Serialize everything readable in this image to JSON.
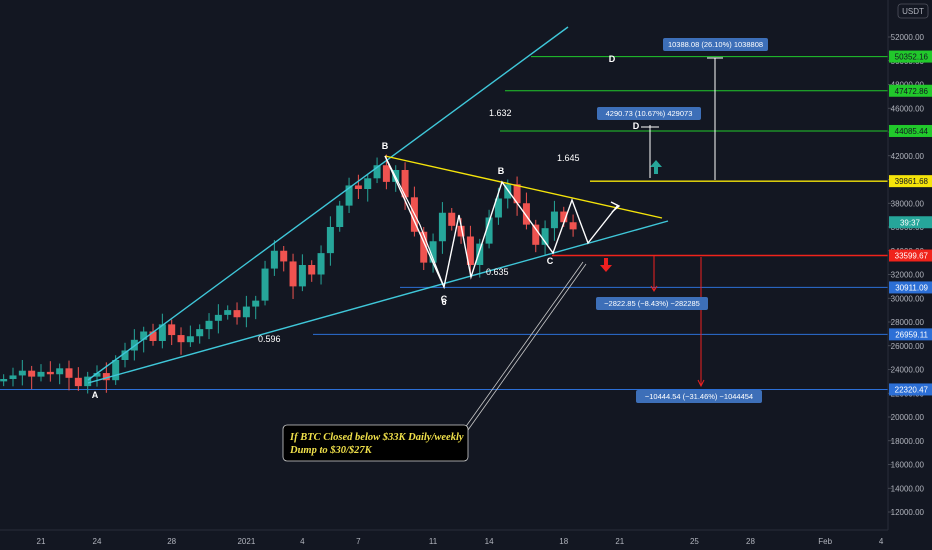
{
  "currency_label": "USDT",
  "chart_data": {
    "type": "candlestick",
    "title": "",
    "y_axis": {
      "ticks": [
        52000,
        50000,
        48000,
        46000,
        44000,
        42000,
        40000,
        38000,
        36000,
        34000,
        32000,
        30000,
        28000,
        26000,
        24000,
        22000,
        20000,
        18000,
        16000,
        14000,
        12000
      ],
      "ylim": [
        11000,
        54000
      ]
    },
    "x_axis": {
      "tick_labels": [
        "21",
        "24",
        "28",
        "2021",
        "4",
        "7",
        "11",
        "14",
        "18",
        "21",
        "25",
        "28",
        "Feb",
        "4"
      ],
      "tick_days": [
        0,
        3,
        7,
        11,
        14,
        17,
        21,
        24,
        28,
        31,
        35,
        38,
        42,
        45
      ]
    },
    "series": [
      {
        "ohlc_day_close": [
          [
            -2,
            23200
          ],
          [
            -1.5,
            23500
          ],
          [
            -1,
            23900
          ],
          [
            -0.5,
            23400
          ],
          [
            0,
            23800
          ],
          [
            0.5,
            23600
          ],
          [
            1,
            24100
          ],
          [
            1.5,
            23300
          ],
          [
            2,
            22600
          ],
          [
            2.5,
            23400
          ],
          [
            3,
            23700
          ],
          [
            3.5,
            23100
          ],
          [
            4,
            24800
          ],
          [
            4.5,
            25600
          ],
          [
            5,
            26500
          ],
          [
            5.5,
            27200
          ],
          [
            6,
            26400
          ],
          [
            6.5,
            27800
          ],
          [
            7,
            26900
          ],
          [
            7.5,
            26300
          ],
          [
            8,
            26800
          ],
          [
            8.5,
            27400
          ],
          [
            9,
            28100
          ],
          [
            9.5,
            28600
          ],
          [
            10,
            29000
          ],
          [
            10.5,
            28400
          ],
          [
            11,
            29300
          ],
          [
            11.5,
            29800
          ],
          [
            12,
            32500
          ],
          [
            12.5,
            34000
          ],
          [
            13,
            33100
          ],
          [
            13.5,
            31000
          ],
          [
            14,
            32800
          ],
          [
            14.5,
            32000
          ],
          [
            15,
            33800
          ],
          [
            15.5,
            36000
          ],
          [
            16,
            37800
          ],
          [
            16.5,
            39500
          ],
          [
            17,
            39200
          ],
          [
            17.5,
            40100
          ],
          [
            18,
            41200
          ],
          [
            18.5,
            39800
          ],
          [
            19,
            40800
          ],
          [
            19.5,
            38500
          ],
          [
            20,
            35600
          ],
          [
            20.5,
            33000
          ],
          [
            21,
            34800
          ],
          [
            21.5,
            37200
          ],
          [
            22,
            36100
          ],
          [
            22.5,
            35200
          ],
          [
            23,
            32800
          ],
          [
            23.5,
            34600
          ],
          [
            24,
            36800
          ],
          [
            24.5,
            38400
          ],
          [
            25,
            39600
          ],
          [
            25.5,
            38000
          ],
          [
            26,
            36200
          ],
          [
            26.5,
            34500
          ],
          [
            27,
            35900
          ],
          [
            27.5,
            37300
          ],
          [
            28,
            36400
          ],
          [
            28.5,
            35800
          ]
        ]
      }
    ],
    "levels": [
      {
        "price_label": "50352.16",
        "color": "#21c92b",
        "value": 50352.16
      },
      {
        "price_label": "47472.86",
        "color": "#21c92b",
        "value": 47472.86
      },
      {
        "price_label": "44085.44",
        "color": "#21c92b",
        "value": 44085.44
      },
      {
        "price_label": "39861.68",
        "color": "#f5e40a",
        "value": 39861.68
      },
      {
        "price_label": "33599.67",
        "color": "#f0231b",
        "value": 33599.67
      },
      {
        "price_label": "30911.09",
        "color": "#2c6fd6",
        "value": 30911.09
      },
      {
        "price_label": "26959.11",
        "color": "#2c6fd6",
        "value": 26959.11
      },
      {
        "price_label": "22320.47",
        "color": "#2c6fd6",
        "value": 22320.47
      }
    ],
    "current_price_label": "39:37",
    "fib_labels": [
      "1.632",
      "1.645",
      "0.635",
      "0.596"
    ],
    "wave_labels": [
      "A",
      "B",
      "B",
      "C",
      "C",
      "D",
      "D",
      "6"
    ],
    "measure_boxes": [
      {
        "text": "10388.08 (26.10%) 1038808",
        "color": "#3d6fb8"
      },
      {
        "text": "4290.73 (10.67%) 429073",
        "color": "#3d6fb8"
      },
      {
        "text": "−2822.85 (−8.43%) −282285",
        "color": "#3d6fb8"
      },
      {
        "text": "−10444.54 (−31.46%) −1044454",
        "color": "#3d6fb8"
      }
    ],
    "note": {
      "line1": "If BTC Closed below $33K Daily/weekly",
      "line2": "Dump to $30/$27K"
    },
    "colors": {
      "up": "#26a69a",
      "down": "#ef5350",
      "channel": "#3fc7d9",
      "triangle_upper": "#f5e40a",
      "zigzag": "#ffffff"
    }
  }
}
